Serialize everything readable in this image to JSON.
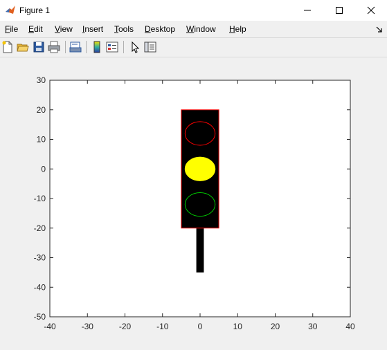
{
  "window": {
    "title": "Figure 1",
    "controls": [
      "minimize",
      "maximize",
      "close"
    ]
  },
  "menubar": {
    "items": [
      {
        "label": "File",
        "mnemonic": "F",
        "rest": "ile"
      },
      {
        "label": "Edit",
        "mnemonic": "E",
        "rest": "dit"
      },
      {
        "label": "View",
        "mnemonic": "V",
        "rest": "iew"
      },
      {
        "label": "Insert",
        "mnemonic": "I",
        "rest": "nsert"
      },
      {
        "label": "Tools",
        "mnemonic": "T",
        "rest": "ools"
      },
      {
        "label": "Desktop",
        "mnemonic": "D",
        "rest": "esktop"
      },
      {
        "label": "Window",
        "mnemonic": "W",
        "rest": "indow"
      },
      {
        "label": "Help",
        "mnemonic": "H",
        "rest": "elp"
      }
    ]
  },
  "toolbar": {
    "buttons": [
      "new-figure-icon",
      "open-file-icon",
      "save-icon",
      "print-icon",
      "print-preview-icon",
      "colorbar-icon",
      "legend-icon",
      "edit-plot-arrow-icon",
      "property-inspector-icon"
    ]
  },
  "chart_data": {
    "type": "scatter",
    "title": "",
    "xlabel": "",
    "ylabel": "",
    "xlim": [
      -40,
      40
    ],
    "ylim": [
      -50,
      30
    ],
    "xticks": [
      "-40",
      "-30",
      "-20",
      "-10",
      "0",
      "10",
      "20",
      "30",
      "40"
    ],
    "yticks": [
      "30",
      "20",
      "10",
      "0",
      "-10",
      "-20",
      "-30",
      "-40",
      "-50"
    ],
    "grid": false,
    "shapes": {
      "housing": {
        "x": [
          -5,
          5
        ],
        "y": [
          -20,
          20
        ],
        "fill": "#000000",
        "edge": "#ff0000"
      },
      "pole": {
        "x": [
          -1,
          1
        ],
        "y": [
          -35,
          -20
        ],
        "fill": "#000000"
      },
      "lights": [
        {
          "name": "red",
          "center": [
            0,
            12
          ],
          "rx": 4,
          "ry": 4,
          "fill": "#000000",
          "edge": "#ff0000",
          "on": false
        },
        {
          "name": "yellow",
          "center": [
            0,
            0
          ],
          "rx": 4,
          "ry": 4,
          "fill": "#ffff00",
          "edge": "#ffff00",
          "on": true
        },
        {
          "name": "green",
          "center": [
            0,
            -12
          ],
          "rx": 4,
          "ry": 4,
          "fill": "#000000",
          "edge": "#00cc00",
          "on": false
        }
      ]
    }
  }
}
